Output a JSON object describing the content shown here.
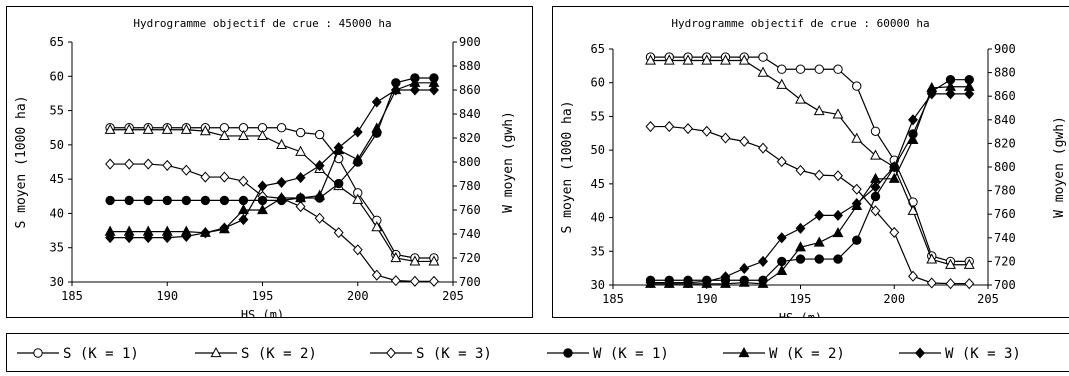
{
  "chart_data": [
    {
      "type": "line",
      "title": "Hydrogramme objectif de crue : 45000 ha",
      "xlabel": "HS (m)",
      "ylabel": "S moyen (1000 ha)",
      "y2label": "W moyen (gwh)",
      "xlim": [
        185,
        205
      ],
      "ylim": [
        30,
        65
      ],
      "y2lim": [
        700,
        900
      ],
      "xticks": [
        "185",
        "190",
        "195",
        "200",
        "205"
      ],
      "yticks": [
        "30",
        "35",
        "40",
        "45",
        "50",
        "55",
        "60",
        "65"
      ],
      "y2ticks": [
        "700",
        "720",
        "740",
        "760",
        "780",
        "800",
        "820",
        "840",
        "860",
        "880",
        "900"
      ],
      "x": [
        187,
        188,
        189,
        190,
        191,
        192,
        193,
        194,
        195,
        196,
        197,
        198,
        199,
        200,
        201,
        202,
        203,
        204
      ],
      "grid": false,
      "series": [
        {
          "name": "S (K = 1)",
          "axis": "left",
          "marker": "circle-open",
          "values": [
            52.5,
            52.5,
            52.5,
            52.5,
            52.5,
            52.5,
            52.5,
            52.5,
            52.5,
            52.5,
            51.8,
            51.5,
            48.0,
            43.0,
            39.0,
            34.0,
            33.5,
            33.5
          ]
        },
        {
          "name": "S (K = 2)",
          "axis": "left",
          "marker": "triangle-open",
          "values": [
            52.2,
            52.2,
            52.2,
            52.2,
            52.2,
            52.0,
            51.3,
            51.3,
            51.3,
            50.0,
            49.0,
            46.5,
            44.0,
            42.0,
            38.0,
            33.5,
            33.0,
            33.0
          ]
        },
        {
          "name": "S (K = 3)",
          "axis": "left",
          "marker": "diamond-open",
          "values": [
            47.2,
            47.2,
            47.2,
            47.0,
            46.3,
            45.3,
            45.3,
            44.7,
            42.5,
            42.2,
            41.0,
            39.3,
            37.2,
            34.7,
            31.0,
            30.2,
            30.1,
            30.1
          ]
        },
        {
          "name": "W (K = 1)",
          "axis": "right",
          "marker": "circle-filled",
          "values": [
            768,
            768,
            768,
            768,
            768,
            768,
            768,
            768,
            768,
            768,
            770,
            770,
            782,
            800,
            824,
            866,
            870,
            870
          ]
        },
        {
          "name": "W (K = 2)",
          "axis": "right",
          "marker": "triangle-filled",
          "values": [
            742,
            742,
            742,
            742,
            742,
            741,
            744,
            760,
            760,
            770,
            770,
            772,
            810,
            802,
            828,
            860,
            866,
            866
          ]
        },
        {
          "name": "W (K = 3)",
          "axis": "right",
          "marker": "diamond-filled",
          "values": [
            737,
            737,
            737,
            737,
            738,
            741,
            745,
            752,
            780,
            783,
            787,
            797,
            812,
            825,
            850,
            860,
            860,
            860
          ]
        }
      ]
    },
    {
      "type": "line",
      "title": "Hydrogramme objectif de crue : 60000 ha",
      "xlabel": "HS (m)",
      "ylabel": "S moyen (1000 ha)",
      "y2label": "W moyen (gwh)",
      "xlim": [
        185,
        205
      ],
      "ylim": [
        30,
        65
      ],
      "y2lim": [
        700,
        900
      ],
      "xticks": [
        "185",
        "190",
        "195",
        "200",
        "205"
      ],
      "yticks": [
        "30",
        "35",
        "40",
        "45",
        "50",
        "55",
        "60",
        "65"
      ],
      "y2ticks": [
        "700",
        "720",
        "740",
        "760",
        "780",
        "800",
        "820",
        "840",
        "860",
        "880",
        "900"
      ],
      "x": [
        187,
        188,
        189,
        190,
        191,
        192,
        193,
        194,
        195,
        196,
        197,
        198,
        199,
        200,
        201,
        202,
        203,
        204
      ],
      "grid": false,
      "series": [
        {
          "name": "S (K = 1)",
          "axis": "left",
          "marker": "circle-open",
          "values": [
            63.8,
            63.8,
            63.8,
            63.8,
            63.8,
            63.8,
            63.8,
            62.0,
            62.0,
            62.0,
            62.0,
            59.5,
            52.8,
            48.5,
            42.3,
            34.3,
            33.5,
            33.5
          ]
        },
        {
          "name": "S (K = 2)",
          "axis": "left",
          "marker": "triangle-open",
          "values": [
            63.3,
            63.3,
            63.3,
            63.3,
            63.3,
            63.3,
            61.5,
            59.7,
            57.5,
            55.8,
            55.3,
            51.7,
            49.2,
            47.5,
            41.0,
            33.8,
            33.0,
            33.0
          ]
        },
        {
          "name": "S (K = 3)",
          "axis": "left",
          "marker": "diamond-open",
          "values": [
            53.5,
            53.5,
            53.2,
            52.8,
            51.8,
            51.3,
            50.3,
            48.3,
            47.0,
            46.3,
            46.2,
            44.2,
            41.0,
            37.8,
            31.3,
            30.3,
            30.2,
            30.2
          ]
        },
        {
          "name": "W (K = 1)",
          "axis": "right",
          "marker": "circle-filled",
          "values": [
            704,
            704,
            704,
            704,
            704,
            704,
            704,
            720,
            722,
            722,
            722,
            738,
            775,
            800,
            828,
            864,
            874,
            874
          ]
        },
        {
          "name": "W (K = 2)",
          "axis": "right",
          "marker": "triangle-filled",
          "values": [
            701,
            701,
            701,
            701,
            701,
            702,
            701,
            712,
            732,
            736,
            744,
            767,
            790,
            790,
            823,
            867,
            868,
            868
          ]
        },
        {
          "name": "W (K = 3)",
          "axis": "right",
          "marker": "diamond-filled",
          "values": [
            702,
            702,
            702,
            703,
            707,
            714,
            720,
            740,
            748,
            759,
            759,
            769,
            783,
            800,
            840,
            862,
            862,
            862
          ]
        }
      ]
    }
  ],
  "legend": {
    "entries": [
      {
        "label": "S (K = 1)",
        "marker": "circle-open"
      },
      {
        "label": "S (K = 2)",
        "marker": "triangle-open"
      },
      {
        "label": "S (K = 3)",
        "marker": "diamond-open"
      },
      {
        "label": "W (K = 1)",
        "marker": "circle-filled"
      },
      {
        "label": "W (K = 2)",
        "marker": "triangle-filled"
      },
      {
        "label": "W (K = 3)",
        "marker": "diamond-filled"
      }
    ]
  }
}
